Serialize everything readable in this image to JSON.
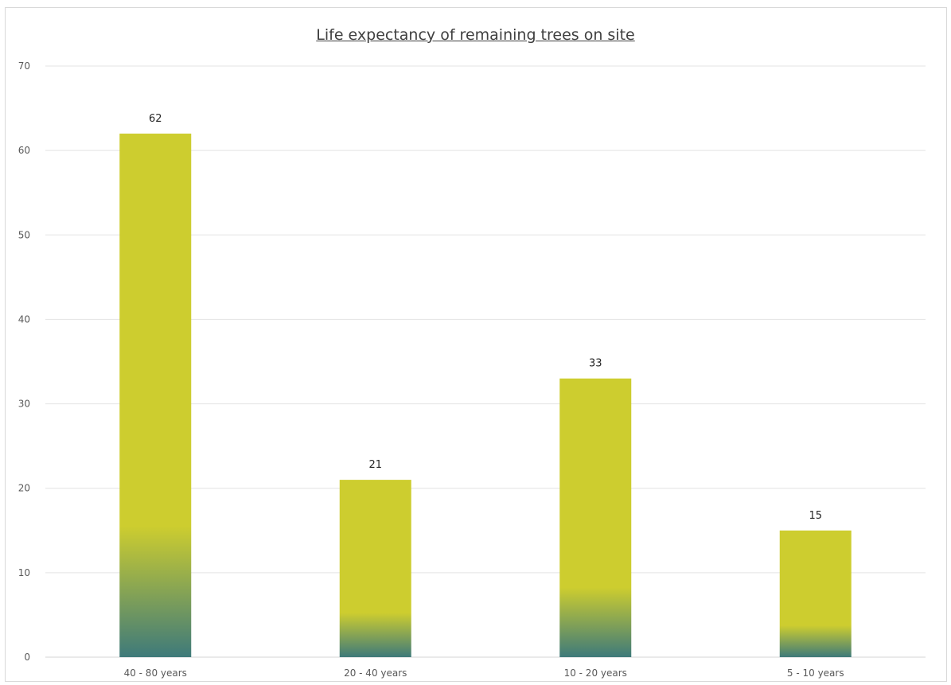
{
  "chart_data": {
    "type": "bar",
    "title": "Life expectancy of remaining trees on site",
    "xlabel": "",
    "ylabel": "",
    "categories": [
      "40 - 80 years",
      "20 - 40 years",
      "10 - 20 years",
      "5 - 10 years"
    ],
    "values": [
      62,
      21,
      33,
      15
    ],
    "ylim": [
      0,
      70
    ],
    "yticks": [
      0,
      10,
      20,
      30,
      40,
      50,
      60,
      70
    ],
    "grid": true,
    "legend": "none",
    "data_labels": true,
    "colors": {
      "bar_top": "#cdcd2f",
      "bar_bottom": "#3e7a7a",
      "grid": "#e3e3e3",
      "axis": "#d4d4d4"
    }
  }
}
